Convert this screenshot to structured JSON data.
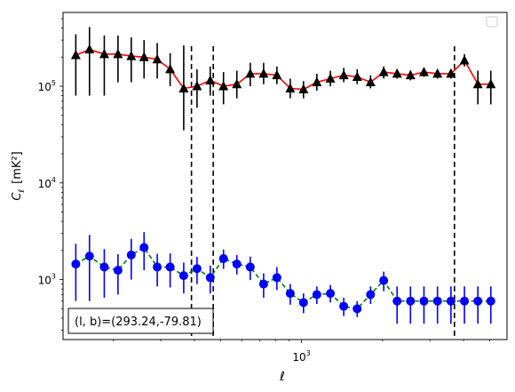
{
  "chart_data": {
    "type": "scatter",
    "x_scale": "log",
    "y_scale": "log",
    "xlim": [
      130,
      5800
    ],
    "ylim": [
      240,
      580000
    ],
    "xlabel": "ℓ",
    "ylabel_main": "C",
    "ylabel_sub": "ℓ",
    "ylabel_unit": "[mK²]",
    "x_tick_labels": [
      {
        "value": 1000,
        "base": "10",
        "exp": "3"
      }
    ],
    "y_tick_labels": [
      {
        "value": 1000,
        "base": "10",
        "exp": "3"
      },
      {
        "value": 10000,
        "base": "10",
        "exp": "4"
      },
      {
        "value": 100000,
        "base": "10",
        "exp": "5"
      }
    ],
    "vertical_lines": [
      390,
      470,
      3700
    ],
    "annotation": "(l, b)=(293.24,-79.81)",
    "legend": "top-right (empty)",
    "series": [
      {
        "color": "#ff0000",
        "marker_color": "#000000",
        "marker": "triangle",
        "linestyle": "solid",
        "x": [
          145,
          163,
          185,
          208,
          233,
          260,
          291,
          325,
          365,
          409,
          458,
          513,
          575,
          645,
          723,
          810,
          908,
          1017,
          1140,
          1280,
          1435,
          1610,
          1805,
          2020,
          2265,
          2540,
          2850,
          3200,
          3590,
          4030,
          4520,
          5050
        ],
        "y": [
          210000,
          240000,
          215000,
          215000,
          205000,
          200000,
          190000,
          150000,
          95000,
          100000,
          115000,
          100000,
          105000,
          135000,
          135000,
          130000,
          95000,
          93000,
          110000,
          120000,
          130000,
          125000,
          110000,
          140000,
          135000,
          130000,
          140000,
          135000,
          135000,
          185000,
          105000,
          105000
        ],
        "yerr_low": [
          130000,
          160000,
          135000,
          105000,
          95000,
          80000,
          70000,
          50000,
          60000,
          40000,
          35000,
          35000,
          30000,
          35000,
          30000,
          25000,
          20000,
          18000,
          20000,
          20000,
          20000,
          20000,
          15000,
          20000,
          15000,
          15000,
          15000,
          15000,
          15000,
          25000,
          40000,
          40000
        ],
        "yerr_high": [
          135000,
          170000,
          120000,
          120000,
          115000,
          100000,
          90000,
          70000,
          170000,
          50000,
          45000,
          40000,
          40000,
          40000,
          40000,
          30000,
          25000,
          20000,
          25000,
          25000,
          25000,
          25000,
          20000,
          20000,
          15000,
          15000,
          15000,
          15000,
          15000,
          30000,
          40000,
          40000
        ]
      },
      {
        "color": "#008000",
        "marker_color": "#0000ff",
        "marker": "circle",
        "linestyle": "dashed",
        "x": [
          145,
          163,
          185,
          208,
          233,
          260,
          291,
          325,
          365,
          409,
          458,
          513,
          575,
          645,
          723,
          810,
          908,
          1017,
          1140,
          1280,
          1435,
          1610,
          1805,
          2020,
          2265,
          2540,
          2850,
          3200,
          3590,
          4030,
          4520,
          5050
        ],
        "y": [
          1450,
          1750,
          1350,
          1250,
          1800,
          2150,
          1350,
          1350,
          1100,
          1300,
          1050,
          1650,
          1450,
          1350,
          900,
          1050,
          720,
          580,
          700,
          720,
          530,
          500,
          700,
          980,
          600,
          600,
          600,
          600,
          600,
          600,
          600,
          600
        ],
        "yerr_low": [
          850,
          1150,
          700,
          550,
          800,
          900,
          500,
          520,
          380,
          400,
          330,
          360,
          320,
          360,
          250,
          270,
          170,
          130,
          140,
          140,
          110,
          90,
          140,
          220,
          250,
          250,
          250,
          250,
          250,
          250,
          250,
          250
        ],
        "yerr_high": [
          900,
          1150,
          720,
          580,
          850,
          950,
          500,
          520,
          400,
          420,
          350,
          400,
          350,
          380,
          260,
          300,
          180,
          140,
          150,
          160,
          120,
          100,
          150,
          230,
          250,
          250,
          250,
          250,
          250,
          250,
          250,
          250
        ]
      }
    ]
  }
}
